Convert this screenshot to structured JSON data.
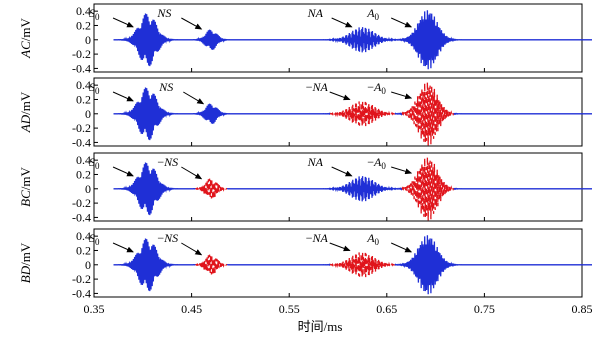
{
  "chart_data": {
    "type": "line",
    "xlabel": "时间/ms",
    "xlim": [
      0.35,
      0.85
    ],
    "xticks": [
      "0.35",
      "0.45",
      "0.55",
      "0.65",
      "0.75",
      "0.85"
    ],
    "colors": {
      "solid": "#1f2fd6",
      "dashed": "#e0141b"
    },
    "panels": [
      {
        "ylabel": "AC/mV",
        "ylim": [
          -0.45,
          0.5
        ],
        "yticks": [
          "0.4",
          "0.2",
          "0",
          "-0.2",
          "-0.4"
        ],
        "packets": [
          {
            "center": 0.405,
            "width": 0.018,
            "amp": 0.38,
            "freq": 170,
            "style": "solid"
          },
          {
            "center": 0.47,
            "width": 0.012,
            "amp": 0.15,
            "freq": 170,
            "style": "solid"
          },
          {
            "center": 0.625,
            "width": 0.025,
            "amp": 0.18,
            "freq": 140,
            "style": "solid"
          },
          {
            "center": 0.692,
            "width": 0.02,
            "amp": 0.42,
            "freq": 180,
            "style": "solid"
          }
        ],
        "annotations": [
          {
            "label": "S0",
            "x": 0.39,
            "y": 0.18
          },
          {
            "label": "NS",
            "x": 0.46,
            "y": 0.15
          },
          {
            "label": "NA",
            "x": 0.614,
            "y": 0.18
          },
          {
            "label": "A0",
            "x": 0.675,
            "y": 0.18
          }
        ]
      },
      {
        "ylabel": "AD/mV",
        "ylim": [
          -0.45,
          0.5
        ],
        "yticks": [
          "0.4",
          "0.2",
          "0",
          "-0.2",
          "-0.4"
        ],
        "packets": [
          {
            "center": 0.405,
            "width": 0.018,
            "amp": 0.38,
            "freq": 170,
            "style": "solid"
          },
          {
            "center": 0.47,
            "width": 0.012,
            "amp": 0.15,
            "freq": 170,
            "style": "solid"
          },
          {
            "center": 0.625,
            "width": 0.025,
            "amp": 0.18,
            "freq": 140,
            "style": "dashed"
          },
          {
            "center": 0.692,
            "width": 0.02,
            "amp": 0.45,
            "freq": 180,
            "style": "dashed"
          }
        ],
        "annotations": [
          {
            "label": "S0",
            "x": 0.39,
            "y": 0.18
          },
          {
            "label": "NS",
            "x": 0.462,
            "y": 0.14
          },
          {
            "label": "−NA",
            "x": 0.612,
            "y": 0.2
          },
          {
            "label": "−A0",
            "x": 0.675,
            "y": 0.22
          }
        ]
      },
      {
        "ylabel": "BC/mV",
        "ylim": [
          -0.45,
          0.5
        ],
        "yticks": [
          "0.4",
          "0.2",
          "0",
          "-0.2",
          "-0.4"
        ],
        "packets": [
          {
            "center": 0.405,
            "width": 0.018,
            "amp": 0.38,
            "freq": 170,
            "style": "solid"
          },
          {
            "center": 0.47,
            "width": 0.012,
            "amp": 0.15,
            "freq": 170,
            "style": "dashed"
          },
          {
            "center": 0.625,
            "width": 0.025,
            "amp": 0.18,
            "freq": 140,
            "style": "solid"
          },
          {
            "center": 0.692,
            "width": 0.02,
            "amp": 0.45,
            "freq": 180,
            "style": "dashed"
          }
        ],
        "annotations": [
          {
            "label": "S0",
            "x": 0.39,
            "y": 0.18
          },
          {
            "label": "−NS",
            "x": 0.46,
            "y": 0.14
          },
          {
            "label": "NA",
            "x": 0.614,
            "y": 0.18
          },
          {
            "label": "−A0",
            "x": 0.675,
            "y": 0.22
          }
        ]
      },
      {
        "ylabel": "BD/mV",
        "ylim": [
          -0.45,
          0.5
        ],
        "yticks": [
          "0.4",
          "0.2",
          "0",
          "-0.2",
          "-0.4"
        ],
        "packets": [
          {
            "center": 0.405,
            "width": 0.018,
            "amp": 0.38,
            "freq": 170,
            "style": "solid"
          },
          {
            "center": 0.47,
            "width": 0.012,
            "amp": 0.15,
            "freq": 170,
            "style": "dashed"
          },
          {
            "center": 0.625,
            "width": 0.025,
            "amp": 0.18,
            "freq": 140,
            "style": "dashed"
          },
          {
            "center": 0.692,
            "width": 0.02,
            "amp": 0.42,
            "freq": 180,
            "style": "solid"
          }
        ],
        "annotations": [
          {
            "label": "S0",
            "x": 0.39,
            "y": 0.18
          },
          {
            "label": "−NS",
            "x": 0.46,
            "y": 0.14
          },
          {
            "label": "−NA",
            "x": 0.612,
            "y": 0.2
          },
          {
            "label": "A0",
            "x": 0.675,
            "y": 0.18
          }
        ]
      }
    ]
  }
}
